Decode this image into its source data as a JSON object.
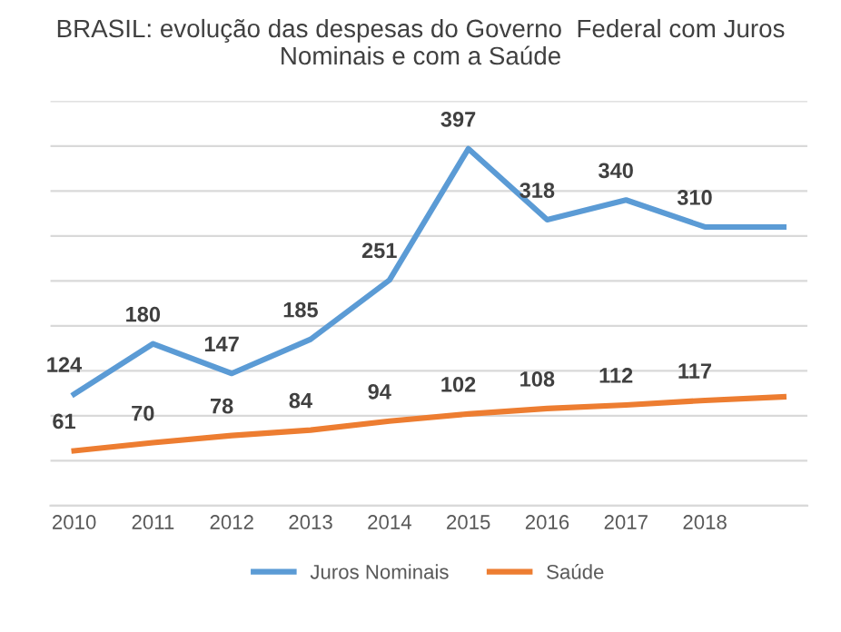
{
  "chart_data": {
    "type": "line",
    "title": "BRASIL: evolução das despesas do Governo  Federal com Juros Nominais e com a Saúde",
    "categories": [
      "2010",
      "2011",
      "2012",
      "2013",
      "2014",
      "2015",
      "2016",
      "2017",
      "2018",
      null
    ],
    "series": [
      {
        "name": "Juros Nominais",
        "color": "#5b9bd5",
        "values": [
          124,
          180,
          147,
          185,
          251,
          397,
          318,
          340,
          310,
          310
        ],
        "value_labels": [
          "124",
          "180",
          "147",
          "185",
          "251",
          "397",
          "318",
          "340",
          "310",
          null
        ]
      },
      {
        "name": "Saúde",
        "color": "#ed7d31",
        "values": [
          61,
          70,
          78,
          84,
          94,
          102,
          108,
          112,
          117,
          121
        ],
        "value_labels": [
          "61",
          "70",
          "78",
          "84",
          "94",
          "102",
          "108",
          "112",
          "117",
          null
        ]
      }
    ],
    "ylim": [
      0,
      450
    ],
    "yticks": [
      {
        "value": 0,
        "label": null
      },
      {
        "value": 50,
        "label": null
      },
      {
        "value": 100,
        "label": null
      },
      {
        "value": 150,
        "label": null
      },
      {
        "value": 200,
        "label": null
      },
      {
        "value": 250,
        "label": null
      },
      {
        "value": 300,
        "label": null
      },
      {
        "value": 350,
        "label": null
      },
      {
        "value": 400,
        "label": null
      },
      {
        "value": 450,
        "label": null
      }
    ],
    "grid": "y",
    "legend": "bottom",
    "tick_labels": "x",
    "marker": "none",
    "line_style": "solid"
  }
}
